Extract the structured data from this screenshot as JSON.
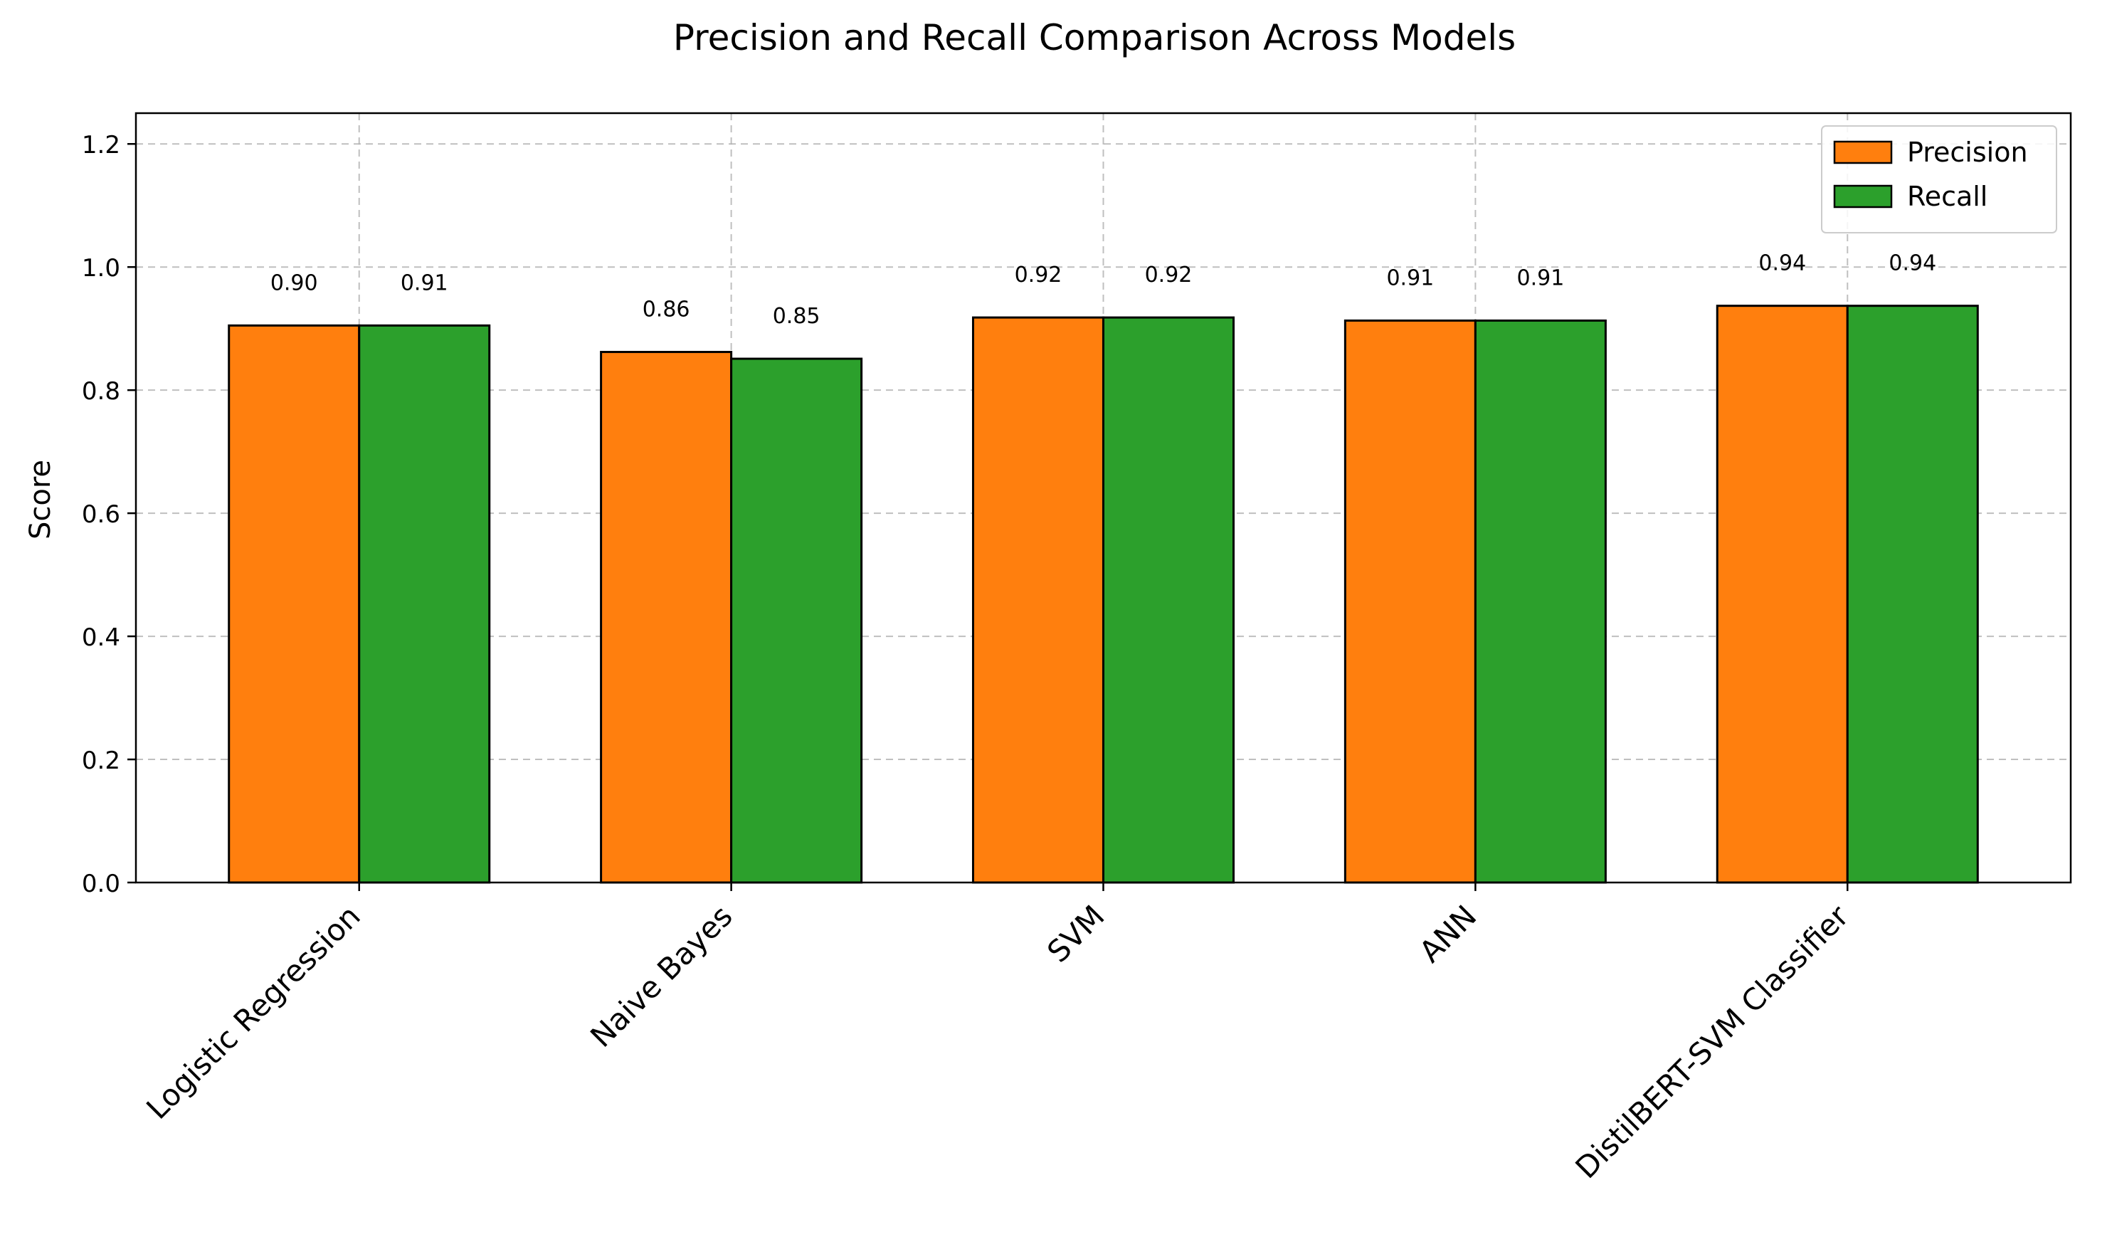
{
  "chart_data": {
    "type": "bar",
    "title": "Precision and Recall Comparison Across Models",
    "xlabel": "",
    "ylabel": "Score",
    "ylim": [
      0,
      1.25
    ],
    "yticks": [
      0.0,
      0.2,
      0.4,
      0.6,
      0.8,
      1.0,
      1.2
    ],
    "ytick_labels": [
      "0.0",
      "0.2",
      "0.4",
      "0.6",
      "0.8",
      "1.0",
      "1.2"
    ],
    "categories": [
      "Logistic Regression",
      "Naive Bayes",
      "SVM",
      "ANN",
      "DistilBERT-SVM Classifier"
    ],
    "series": [
      {
        "name": "Precision",
        "color": "#ff7f0e",
        "values": [
          0.905,
          0.862,
          0.918,
          0.913,
          0.937
        ],
        "labels": [
          "0.90",
          "0.86",
          "0.92",
          "0.91",
          "0.94"
        ]
      },
      {
        "name": "Recall",
        "color": "#2ca02c",
        "values": [
          0.905,
          0.851,
          0.918,
          0.913,
          0.937
        ],
        "labels": [
          "0.91",
          "0.85",
          "0.92",
          "0.91",
          "0.94"
        ]
      }
    ],
    "grid": true,
    "legend_position": "top-right"
  }
}
